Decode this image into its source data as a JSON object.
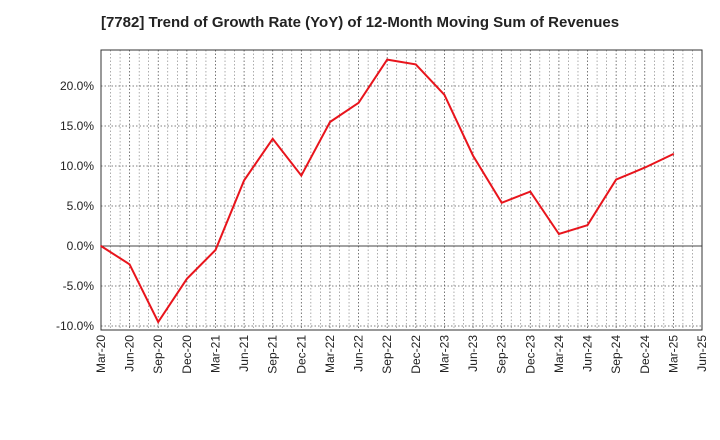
{
  "chart_data": {
    "type": "line",
    "title": "[7782]  Trend of Growth Rate (YoY) of 12-Month Moving Sum of Revenues",
    "xlabel": "",
    "ylabel": "",
    "x_tick_labels": [
      "Mar-20",
      "Jun-20",
      "Sep-20",
      "Dec-20",
      "Mar-21",
      "Jun-21",
      "Sep-21",
      "Dec-21",
      "Mar-22",
      "Jun-22",
      "Sep-22",
      "Dec-22",
      "Mar-23",
      "Jun-23",
      "Sep-23",
      "Dec-23",
      "Mar-24",
      "Jun-24",
      "Sep-24",
      "Dec-24",
      "Mar-25",
      "Jun-25"
    ],
    "y_ticks": [
      -10,
      -5,
      0,
      5,
      10,
      15,
      20
    ],
    "y_tick_labels": [
      "-10.0%",
      "-5.0%",
      "0.0%",
      "5.0%",
      "10.0%",
      "15.0%",
      "20.0%"
    ],
    "ylim": [
      -10.5,
      24.5
    ],
    "grid": true,
    "series": [
      {
        "color": "#e8141c",
        "points": [
          [
            "Mar-20",
            0.0
          ],
          [
            "Jun-20",
            -2.3
          ],
          [
            "Sep-20",
            -9.5
          ],
          [
            "Dec-20",
            -4.1
          ],
          [
            "Mar-21",
            -0.5
          ],
          [
            "Jun-21",
            8.2
          ],
          [
            "Sep-21",
            13.4
          ],
          [
            "Dec-21",
            8.8
          ],
          [
            "Mar-22",
            15.5
          ],
          [
            "Jun-22",
            17.9
          ],
          [
            "Sep-22",
            23.3
          ],
          [
            "Dec-22",
            22.7
          ],
          [
            "Mar-23",
            18.9
          ],
          [
            "Jun-23",
            11.3
          ],
          [
            "Sep-23",
            5.4
          ],
          [
            "Dec-23",
            6.8
          ],
          [
            "Mar-24",
            1.5
          ],
          [
            "Jun-24",
            2.6
          ],
          [
            "Sep-24",
            8.3
          ],
          [
            "Dec-24",
            9.8
          ],
          [
            "Mar-25",
            11.5
          ]
        ]
      }
    ]
  }
}
